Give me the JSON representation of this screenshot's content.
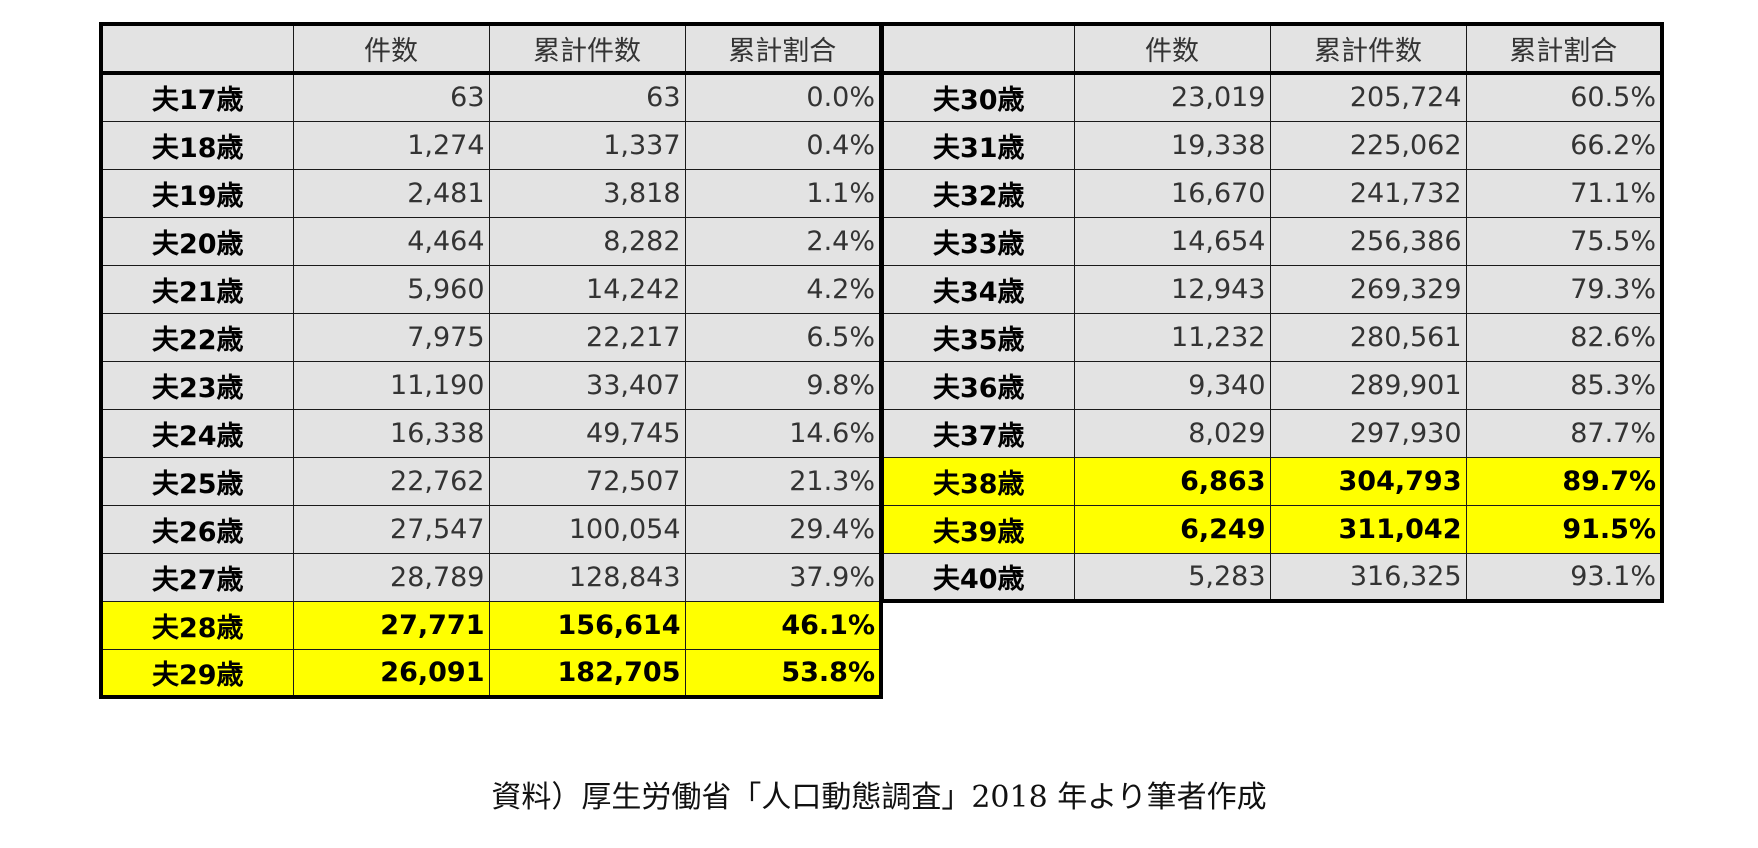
{
  "tables": {
    "left": {
      "headers": [
        "",
        "件数",
        "累計件数",
        "累計割合"
      ],
      "rows": [
        {
          "label": "夫17歳",
          "count": "63",
          "cumulative": "63",
          "ratio": "0.0%",
          "highlight": false
        },
        {
          "label": "夫18歳",
          "count": "1,274",
          "cumulative": "1,337",
          "ratio": "0.4%",
          "highlight": false
        },
        {
          "label": "夫19歳",
          "count": "2,481",
          "cumulative": "3,818",
          "ratio": "1.1%",
          "highlight": false
        },
        {
          "label": "夫20歳",
          "count": "4,464",
          "cumulative": "8,282",
          "ratio": "2.4%",
          "highlight": false
        },
        {
          "label": "夫21歳",
          "count": "5,960",
          "cumulative": "14,242",
          "ratio": "4.2%",
          "highlight": false
        },
        {
          "label": "夫22歳",
          "count": "7,975",
          "cumulative": "22,217",
          "ratio": "6.5%",
          "highlight": false
        },
        {
          "label": "夫23歳",
          "count": "11,190",
          "cumulative": "33,407",
          "ratio": "9.8%",
          "highlight": false
        },
        {
          "label": "夫24歳",
          "count": "16,338",
          "cumulative": "49,745",
          "ratio": "14.6%",
          "highlight": false
        },
        {
          "label": "夫25歳",
          "count": "22,762",
          "cumulative": "72,507",
          "ratio": "21.3%",
          "highlight": false
        },
        {
          "label": "夫26歳",
          "count": "27,547",
          "cumulative": "100,054",
          "ratio": "29.4%",
          "highlight": false
        },
        {
          "label": "夫27歳",
          "count": "28,789",
          "cumulative": "128,843",
          "ratio": "37.9%",
          "highlight": false
        },
        {
          "label": "夫28歳",
          "count": "27,771",
          "cumulative": "156,614",
          "ratio": "46.1%",
          "highlight": true
        },
        {
          "label": "夫29歳",
          "count": "26,091",
          "cumulative": "182,705",
          "ratio": "53.8%",
          "highlight": true
        }
      ]
    },
    "right": {
      "headers": [
        "",
        "件数",
        "累計件数",
        "累計割合"
      ],
      "rows": [
        {
          "label": "夫30歳",
          "count": "23,019",
          "cumulative": "205,724",
          "ratio": "60.5%",
          "highlight": false
        },
        {
          "label": "夫31歳",
          "count": "19,338",
          "cumulative": "225,062",
          "ratio": "66.2%",
          "highlight": false
        },
        {
          "label": "夫32歳",
          "count": "16,670",
          "cumulative": "241,732",
          "ratio": "71.1%",
          "highlight": false
        },
        {
          "label": "夫33歳",
          "count": "14,654",
          "cumulative": "256,386",
          "ratio": "75.5%",
          "highlight": false
        },
        {
          "label": "夫34歳",
          "count": "12,943",
          "cumulative": "269,329",
          "ratio": "79.3%",
          "highlight": false
        },
        {
          "label": "夫35歳",
          "count": "11,232",
          "cumulative": "280,561",
          "ratio": "82.6%",
          "highlight": false
        },
        {
          "label": "夫36歳",
          "count": "9,340",
          "cumulative": "289,901",
          "ratio": "85.3%",
          "highlight": false
        },
        {
          "label": "夫37歳",
          "count": "8,029",
          "cumulative": "297,930",
          "ratio": "87.7%",
          "highlight": false
        },
        {
          "label": "夫38歳",
          "count": "6,863",
          "cumulative": "304,793",
          "ratio": "89.7%",
          "highlight": true
        },
        {
          "label": "夫39歳",
          "count": "6,249",
          "cumulative": "311,042",
          "ratio": "91.5%",
          "highlight": true
        },
        {
          "label": "夫40歳",
          "count": "5,283",
          "cumulative": "316,325",
          "ratio": "93.1%",
          "highlight": false
        }
      ]
    }
  },
  "caption": "資料）厚生労働省「人口動態調査」2018 年より筆者作成",
  "colors": {
    "cell_background": "#e3e3e3",
    "highlight": "#ffff00",
    "border": "#000000"
  }
}
